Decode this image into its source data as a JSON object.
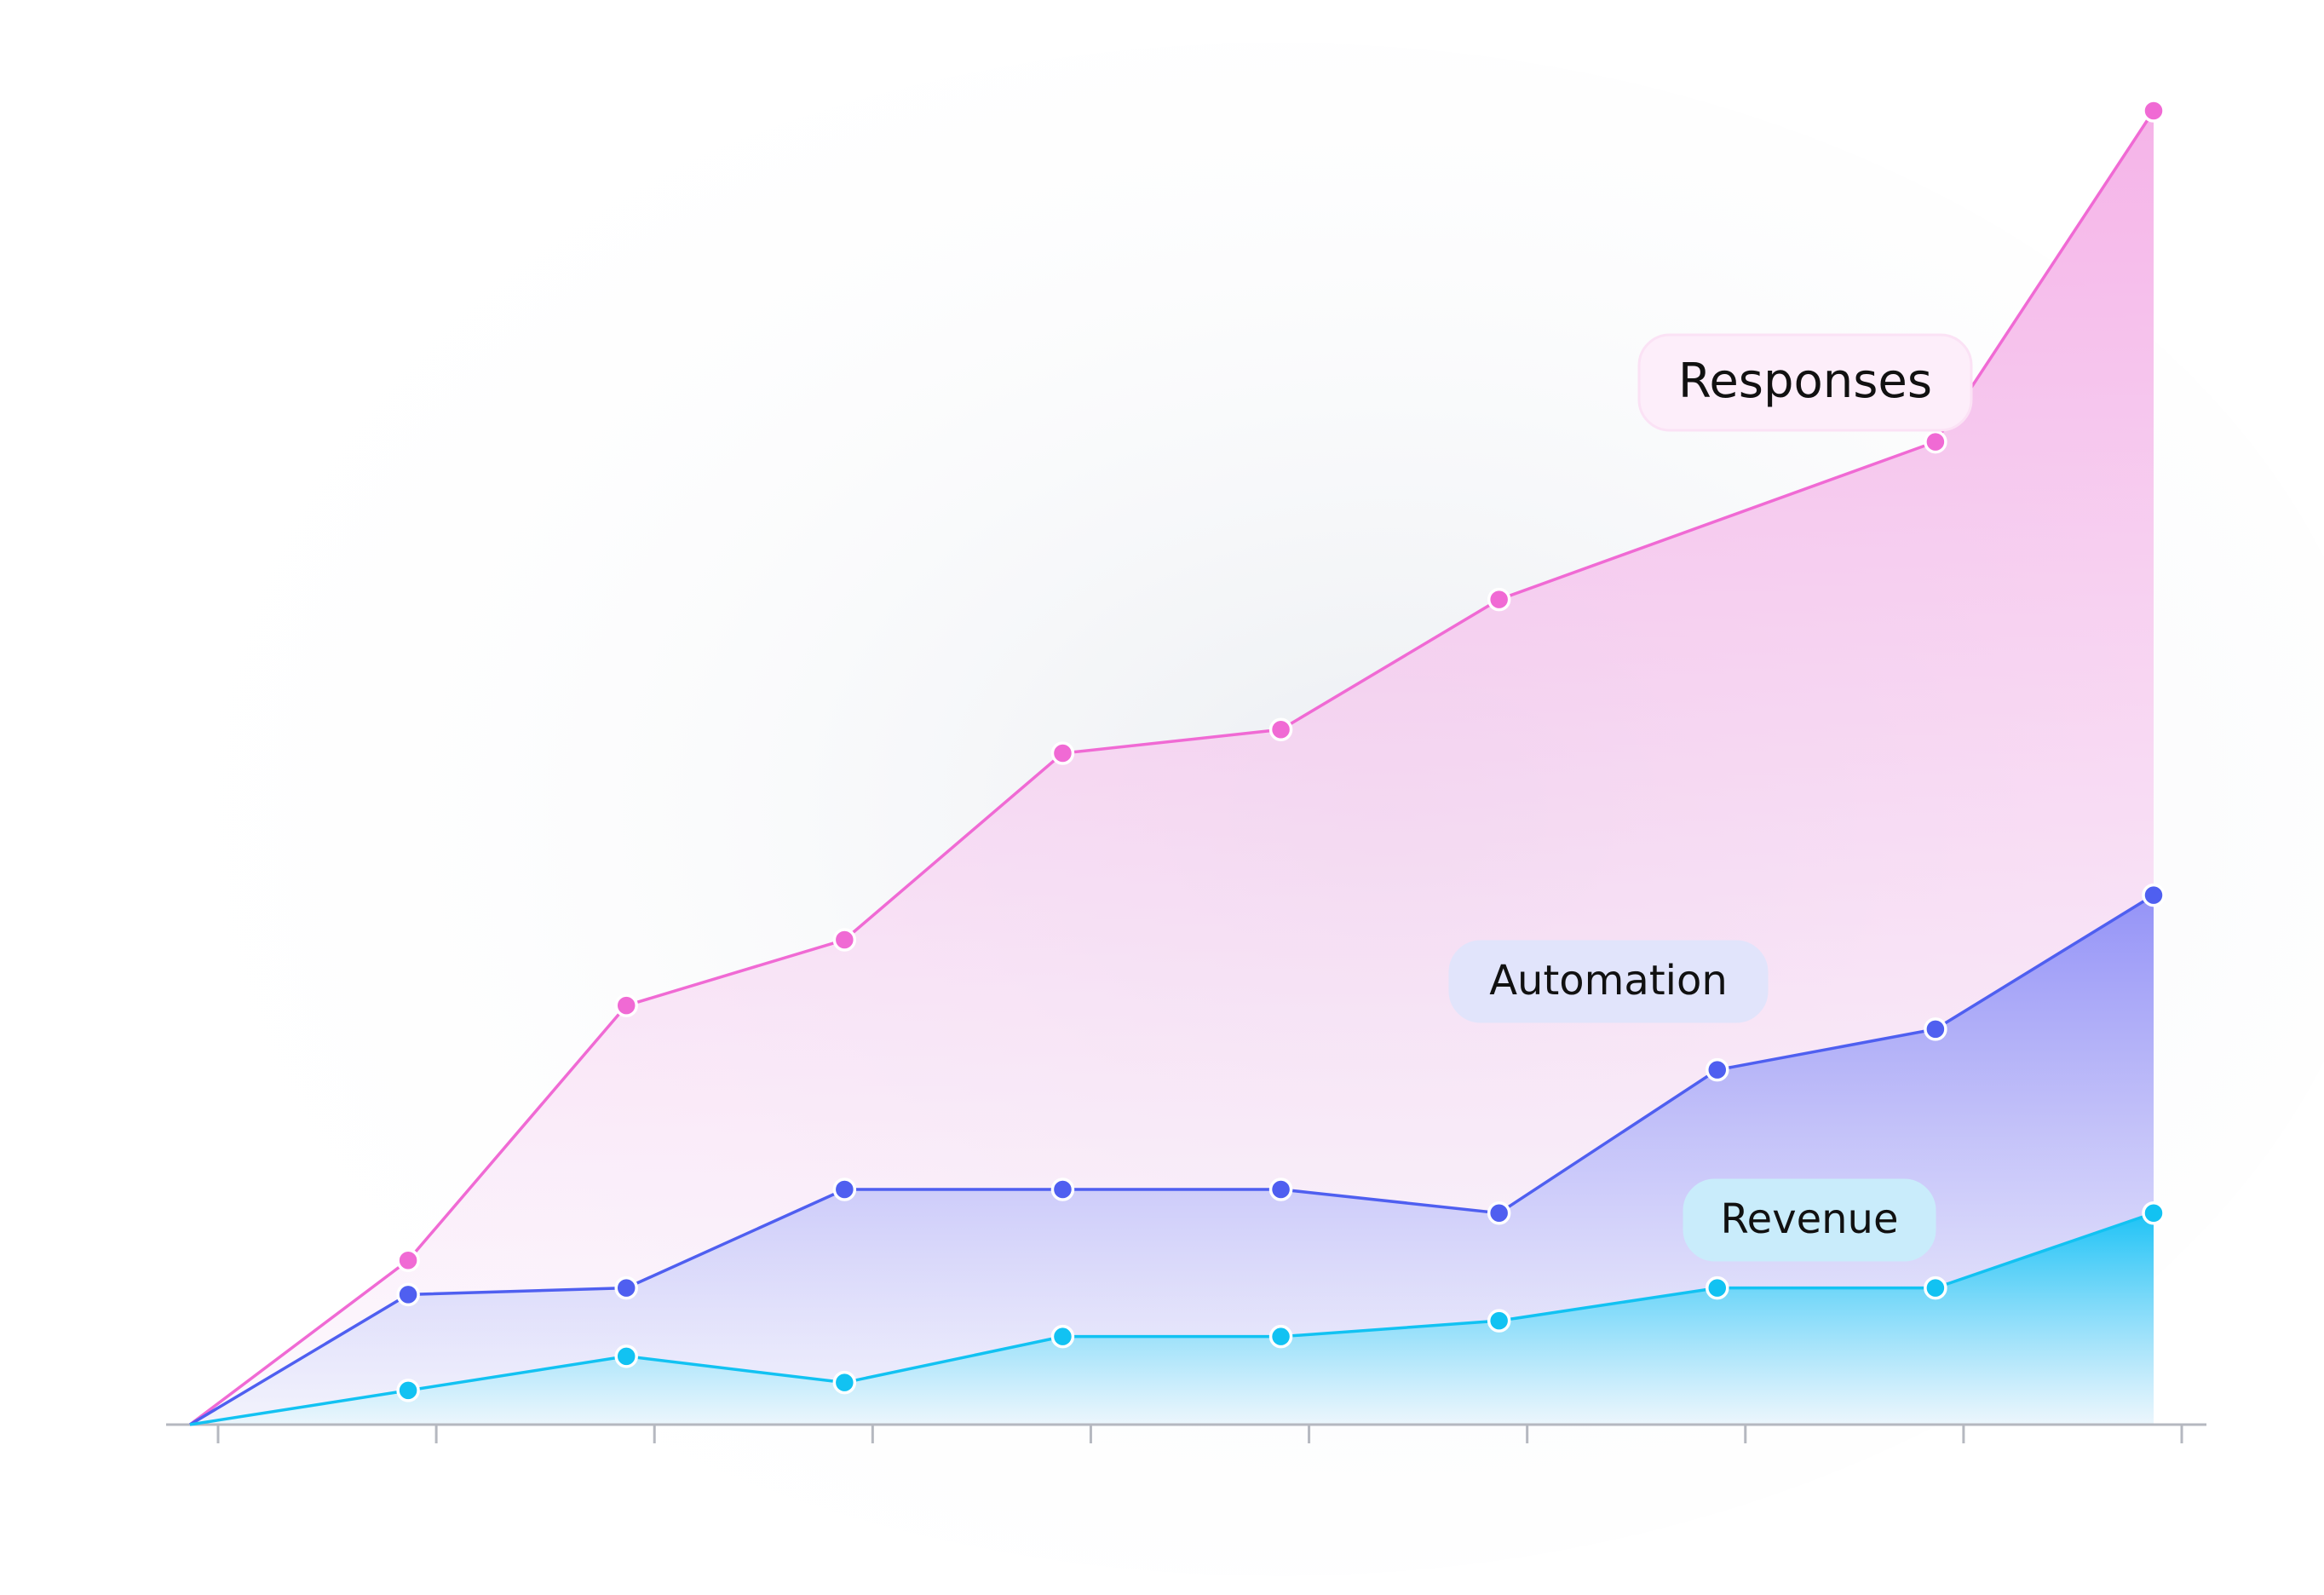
{
  "chart_data": {
    "type": "area",
    "x": [
      0,
      1,
      2,
      3,
      4,
      5,
      6,
      7,
      8,
      9
    ],
    "xlim": [
      0,
      9
    ],
    "xticks": [
      0,
      1,
      2,
      3,
      4,
      5,
      6,
      7,
      8,
      9
    ],
    "ylim": [
      0,
      100
    ],
    "series": [
      {
        "name": "Responses",
        "color": "#f06ad4",
        "x": [
          0,
          1,
          2,
          3,
          4,
          5,
          6,
          8,
          9
        ],
        "values": [
          0,
          12.5,
          31.9,
          36.9,
          51.1,
          52.9,
          62.8,
          74.8,
          100
        ]
      },
      {
        "name": "Automation",
        "color": "#4f5ff0",
        "values": [
          0,
          9.9,
          10.4,
          17.9,
          17.9,
          17.9,
          16.1,
          27.0,
          30.1,
          40.3
        ]
      },
      {
        "name": "Revenue",
        "color": "#12c2f2",
        "values": [
          0,
          2.6,
          5.2,
          3.2,
          6.7,
          6.7,
          7.9,
          10.4,
          10.4,
          16.1
        ]
      }
    ]
  }
}
